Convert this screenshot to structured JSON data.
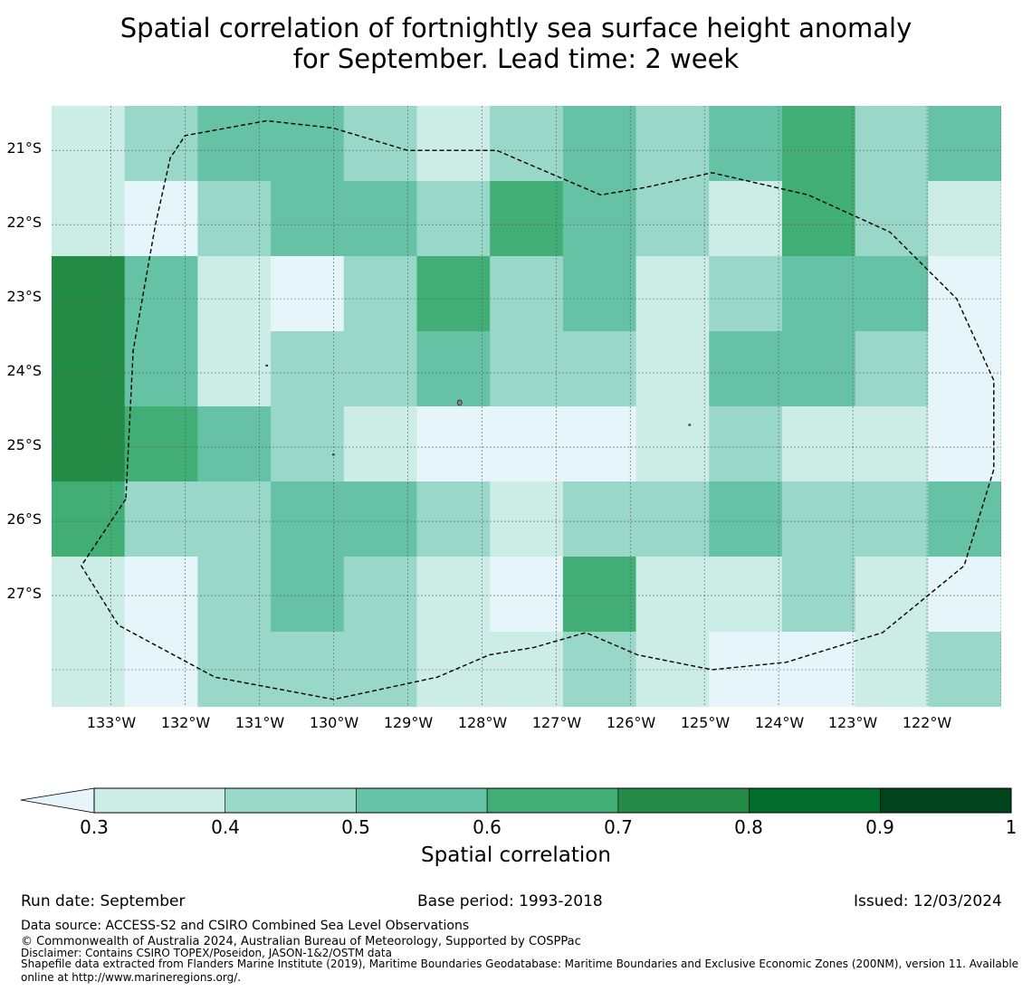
{
  "title": {
    "line1": "Spatial correlation of fortnightly sea surface height anomaly",
    "line2": "for September. Lead time: 2 week"
  },
  "map": {
    "lat_labels": [
      "21°S",
      "22°S",
      "23°S",
      "24°S",
      "25°S",
      "26°S",
      "27°S"
    ],
    "lon_labels": [
      "133°W",
      "132°W",
      "131°W",
      "130°W",
      "129°W",
      "128°W",
      "127°W",
      "126°W",
      "125°W",
      "124°W",
      "123°W",
      "122°W"
    ],
    "lat_range": [
      -28.5,
      -20.4
    ],
    "lon_range": [
      -133.8,
      -121.0
    ],
    "grid": {
      "rows": 8,
      "cols": 13,
      "class_values": [
        [
          1,
          2,
          3,
          3,
          2,
          1,
          2,
          3,
          2,
          3,
          4,
          2,
          3
        ],
        [
          1,
          0,
          2,
          3,
          3,
          2,
          4,
          3,
          2,
          1,
          4,
          2,
          1
        ],
        [
          5,
          3,
          1,
          0,
          2,
          4,
          2,
          3,
          1,
          2,
          3,
          3,
          0
        ],
        [
          5,
          3,
          1,
          2,
          2,
          3,
          2,
          2,
          1,
          3,
          3,
          2,
          0
        ],
        [
          5,
          4,
          3,
          2,
          1,
          0,
          0,
          0,
          1,
          2,
          1,
          1,
          0
        ],
        [
          4,
          2,
          2,
          3,
          3,
          2,
          1,
          2,
          2,
          3,
          2,
          2,
          3
        ],
        [
          1,
          0,
          2,
          3,
          2,
          1,
          0,
          4,
          1,
          1,
          2,
          1,
          0
        ],
        [
          1,
          0,
          2,
          2,
          2,
          1,
          1,
          2,
          1,
          0,
          0,
          1,
          2
        ]
      ]
    },
    "boundary_lonlat": [
      [
        -132.8,
        -25.7
      ],
      [
        -133.4,
        -26.6
      ],
      [
        -132.9,
        -27.4
      ],
      [
        -131.6,
        -28.1
      ],
      [
        -130.0,
        -28.4
      ],
      [
        -128.6,
        -28.1
      ],
      [
        -127.9,
        -27.8
      ],
      [
        -127.3,
        -27.7
      ],
      [
        -126.6,
        -27.5
      ],
      [
        -125.9,
        -27.8
      ],
      [
        -124.9,
        -28.0
      ],
      [
        -123.9,
        -27.9
      ],
      [
        -122.6,
        -27.5
      ],
      [
        -121.5,
        -26.6
      ],
      [
        -121.1,
        -25.3
      ],
      [
        -121.1,
        -24.1
      ],
      [
        -121.6,
        -23.0
      ],
      [
        -122.5,
        -22.1
      ],
      [
        -123.6,
        -21.6
      ],
      [
        -124.9,
        -21.3
      ],
      [
        -125.8,
        -21.5
      ],
      [
        -126.4,
        -21.6
      ],
      [
        -127.1,
        -21.3
      ],
      [
        -127.8,
        -21.0
      ],
      [
        -129.0,
        -21.0
      ],
      [
        -130.0,
        -20.7
      ],
      [
        -130.9,
        -20.6
      ],
      [
        -132.0,
        -20.8
      ],
      [
        -132.2,
        -21.1
      ],
      [
        -132.4,
        -22.0
      ],
      [
        -132.7,
        -23.7
      ],
      [
        -132.8,
        -25.7
      ]
    ],
    "islands_lonlat": [
      [
        -128.3,
        -24.4
      ],
      [
        -130.9,
        -23.9
      ],
      [
        -130.0,
        -25.1
      ],
      [
        -125.2,
        -24.7
      ]
    ]
  },
  "colorbar": {
    "label": "Spatial correlation",
    "ticks": [
      "0.3",
      "0.4",
      "0.5",
      "0.6",
      "0.7",
      "0.8",
      "0.9",
      "1"
    ],
    "under_color": "#e5f5f9",
    "colors": [
      "#ccece6",
      "#99d8c9",
      "#66c2a4",
      "#41ae76",
      "#238b45",
      "#006d2c",
      "#00441b"
    ]
  },
  "footer": {
    "run_date": "Run date: September",
    "base_period": "Base period: 1993-2018",
    "issued": "Issued: 12/03/2024",
    "data_source": "Data source: ACCESS-S2 and CSIRO Combined Sea Level Observations",
    "copyright": "© Commonwealth of Australia 2024, Australian Bureau of Meteorology, Supported by COSPPac",
    "disclaimer": "Disclaimer: Contains CSIRO TOPEX/Poseidon, JASON-1&2/OSTM data",
    "shapefile_line1": "Shapefile data extracted from Flanders Marine Institute (2019), Maritime Boundaries Geodatabase: Maritime Boundaries and Exclusive Economic Zones (200NM), version 11. Available",
    "shapefile_line2": "online at http://www.marineregions.org/."
  }
}
